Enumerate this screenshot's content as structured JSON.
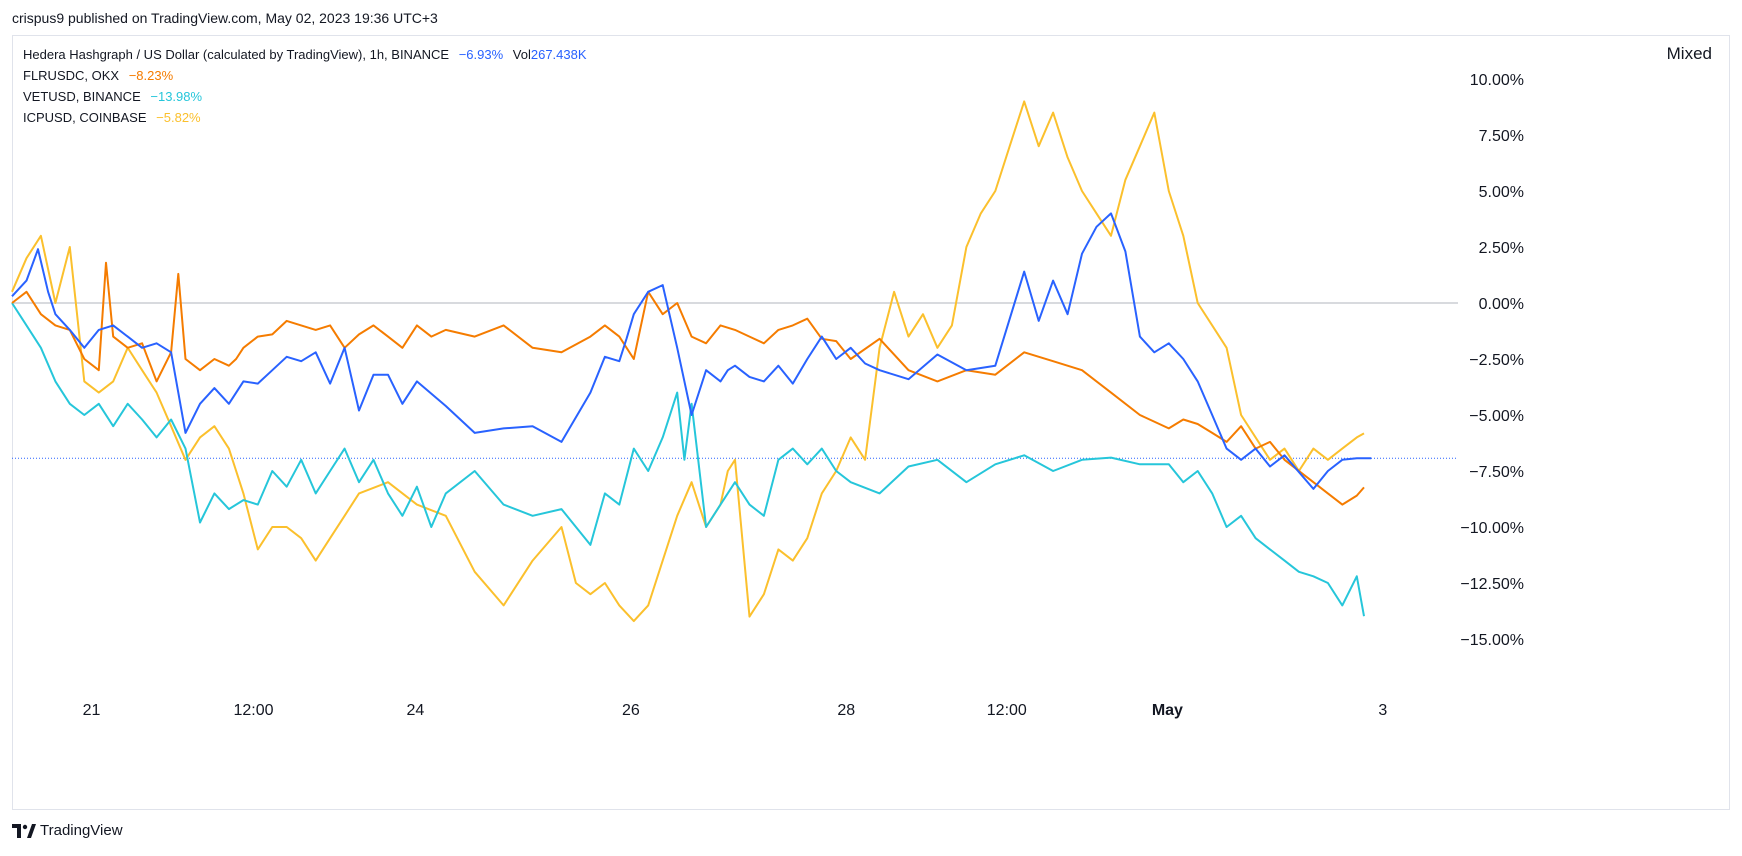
{
  "header": {
    "published_by": "crispus9 published on TradingView.com, May 02, 2023 19:36 UTC+3"
  },
  "footer": {
    "brand": "TradingView"
  },
  "colors": {
    "hbar": "#2962ff",
    "flr": "#f57c00",
    "vet": "#26c6da",
    "icp": "#fbc02d",
    "grid_zero": "#b2b5be",
    "last_price_line": "#2962ff"
  },
  "legend": {
    "main": {
      "name": "Hedera Hashgraph / US Dollar (calculated by TradingView), 1h, BINANCE",
      "change": "−6.93%",
      "vol_label": "Vol",
      "vol_value": "267.438K"
    },
    "series": [
      {
        "name": "FLRUSDC, OKX",
        "change": "−8.23%"
      },
      {
        "name": "VETUSD, BINANCE",
        "change": "−13.98%"
      },
      {
        "name": "ICPUSD, COINBASE",
        "change": "−5.82%"
      }
    ]
  },
  "chart_data": {
    "type": "line",
    "scale_label": "Mixed",
    "y_ticks": [
      "10.00%",
      "7.50%",
      "5.00%",
      "2.50%",
      "0.00%",
      "−2.50%",
      "−5.00%",
      "−7.50%",
      "−10.00%",
      "−12.50%",
      "−15.00%"
    ],
    "y_tick_values": [
      10,
      7.5,
      5,
      2.5,
      0,
      -2.5,
      -5,
      -7.5,
      -10,
      -12.5,
      -15
    ],
    "ylim": [
      -16.5,
      11.5
    ],
    "x_ticks": [
      {
        "label": "21",
        "t": 0.055
      },
      {
        "label": "12:00",
        "t": 0.167
      },
      {
        "label": "24",
        "t": 0.279
      },
      {
        "label": "26",
        "t": 0.428
      },
      {
        "label": "28",
        "t": 0.577
      },
      {
        "label": "12:00",
        "t": 0.688
      },
      {
        "label": "May",
        "t": 0.799,
        "bold": true
      },
      {
        "label": "3",
        "t": 0.948
      }
    ],
    "series": [
      {
        "name": "Hedera Hashgraph / US Dollar",
        "color_key": "hbar",
        "x": [
          0,
          0.01,
          0.018,
          0.025,
          0.03,
          0.04,
          0.05,
          0.06,
          0.07,
          0.08,
          0.09,
          0.1,
          0.11,
          0.12,
          0.13,
          0.14,
          0.15,
          0.16,
          0.17,
          0.18,
          0.19,
          0.2,
          0.21,
          0.22,
          0.23,
          0.24,
          0.25,
          0.26,
          0.27,
          0.28,
          0.3,
          0.32,
          0.34,
          0.36,
          0.38,
          0.4,
          0.41,
          0.42,
          0.425,
          0.43,
          0.44,
          0.45,
          0.46,
          0.47,
          0.48,
          0.49,
          0.495,
          0.5,
          0.51,
          0.52,
          0.53,
          0.54,
          0.55,
          0.56,
          0.57,
          0.58,
          0.59,
          0.6,
          0.62,
          0.64,
          0.66,
          0.68,
          0.7,
          0.71,
          0.72,
          0.73,
          0.74,
          0.75,
          0.76,
          0.77,
          0.78,
          0.79,
          0.8,
          0.81,
          0.82,
          0.83,
          0.84,
          0.85,
          0.86,
          0.87,
          0.88,
          0.9,
          0.91,
          0.92,
          0.93,
          0.94
        ],
        "values": [
          0.3,
          1.0,
          2.4,
          0.5,
          -0.5,
          -1.2,
          -2.0,
          -1.2,
          -1.0,
          -1.5,
          -2.0,
          -1.8,
          -2.2,
          -5.8,
          -4.5,
          -3.8,
          -4.5,
          -3.5,
          -3.6,
          -3.0,
          -2.4,
          -2.6,
          -2.2,
          -3.6,
          -2.0,
          -4.8,
          -3.2,
          -3.2,
          -4.5,
          -3.5,
          -4.6,
          -5.8,
          -5.6,
          -5.5,
          -6.2,
          -4.0,
          -2.4,
          -2.6,
          -1.6,
          -0.5,
          0.5,
          0.8,
          -2.0,
          -5.0,
          -3.0,
          -3.5,
          -3.0,
          -2.8,
          -3.3,
          -3.5,
          -2.8,
          -3.6,
          -2.5,
          -1.5,
          -2.5,
          -2.0,
          -2.7,
          -3.0,
          -3.4,
          -2.3,
          -3.0,
          -2.8,
          1.4,
          -0.8,
          1.0,
          -0.5,
          2.2,
          3.4,
          4.0,
          2.3,
          -1.5,
          -2.2,
          -1.8,
          -2.5,
          -3.5,
          -5.0,
          -6.5,
          -7.0,
          -6.5,
          -7.3,
          -6.8,
          -8.3,
          -7.5,
          -7.0,
          -6.93,
          -6.93
        ]
      },
      {
        "name": "FLRUSDC, OKX",
        "color_key": "flr",
        "x": [
          0,
          0.01,
          0.02,
          0.03,
          0.04,
          0.05,
          0.06,
          0.065,
          0.07,
          0.08,
          0.09,
          0.1,
          0.11,
          0.115,
          0.12,
          0.13,
          0.14,
          0.15,
          0.155,
          0.16,
          0.17,
          0.18,
          0.19,
          0.2,
          0.21,
          0.22,
          0.23,
          0.24,
          0.25,
          0.26,
          0.27,
          0.28,
          0.29,
          0.3,
          0.32,
          0.34,
          0.36,
          0.38,
          0.4,
          0.41,
          0.42,
          0.43,
          0.44,
          0.45,
          0.46,
          0.47,
          0.48,
          0.49,
          0.5,
          0.51,
          0.52,
          0.53,
          0.54,
          0.55,
          0.56,
          0.57,
          0.58,
          0.6,
          0.62,
          0.64,
          0.66,
          0.68,
          0.7,
          0.72,
          0.74,
          0.76,
          0.78,
          0.8,
          0.81,
          0.82,
          0.83,
          0.84,
          0.85,
          0.86,
          0.87,
          0.88,
          0.9,
          0.91,
          0.92,
          0.93,
          0.935
        ],
        "values": [
          0.0,
          0.5,
          -0.5,
          -1.0,
          -1.2,
          -2.5,
          -3.0,
          1.8,
          -1.5,
          -2.0,
          -1.8,
          -3.5,
          -2.2,
          1.3,
          -2.5,
          -3.0,
          -2.5,
          -2.8,
          -2.5,
          -2.0,
          -1.5,
          -1.4,
          -0.8,
          -1.0,
          -1.2,
          -1.0,
          -2.0,
          -1.4,
          -1.0,
          -1.5,
          -2.0,
          -1.0,
          -1.5,
          -1.2,
          -1.5,
          -1.0,
          -2.0,
          -2.2,
          -1.5,
          -1.0,
          -1.5,
          -2.5,
          0.5,
          -0.5,
          0.0,
          -1.5,
          -1.8,
          -1.0,
          -1.2,
          -1.5,
          -1.8,
          -1.2,
          -1.0,
          -0.7,
          -1.6,
          -1.7,
          -2.5,
          -1.6,
          -3.0,
          -3.5,
          -3.0,
          -3.2,
          -2.2,
          -2.6,
          -3.0,
          -4.0,
          -5.0,
          -5.6,
          -5.2,
          -5.4,
          -5.8,
          -6.2,
          -5.5,
          -6.5,
          -6.2,
          -7.0,
          -8.0,
          -8.5,
          -9.0,
          -8.6,
          -8.23
        ]
      },
      {
        "name": "VETUSD, BINANCE",
        "color_key": "vet",
        "x": [
          0,
          0.01,
          0.02,
          0.03,
          0.04,
          0.05,
          0.06,
          0.07,
          0.08,
          0.09,
          0.1,
          0.11,
          0.12,
          0.13,
          0.14,
          0.15,
          0.16,
          0.17,
          0.18,
          0.19,
          0.2,
          0.21,
          0.22,
          0.23,
          0.24,
          0.25,
          0.26,
          0.27,
          0.28,
          0.29,
          0.3,
          0.32,
          0.34,
          0.36,
          0.38,
          0.4,
          0.41,
          0.42,
          0.43,
          0.44,
          0.45,
          0.46,
          0.465,
          0.47,
          0.48,
          0.49,
          0.5,
          0.51,
          0.52,
          0.53,
          0.54,
          0.55,
          0.56,
          0.57,
          0.58,
          0.6,
          0.62,
          0.64,
          0.66,
          0.68,
          0.7,
          0.72,
          0.74,
          0.76,
          0.78,
          0.8,
          0.81,
          0.82,
          0.83,
          0.84,
          0.85,
          0.86,
          0.87,
          0.88,
          0.89,
          0.9,
          0.91,
          0.92,
          0.93,
          0.935
        ],
        "values": [
          0.0,
          -1.0,
          -2.0,
          -3.5,
          -4.5,
          -5.0,
          -4.5,
          -5.5,
          -4.5,
          -5.2,
          -6.0,
          -5.2,
          -6.5,
          -9.8,
          -8.5,
          -9.2,
          -8.8,
          -9.0,
          -7.5,
          -8.2,
          -7.0,
          -8.5,
          -7.5,
          -6.5,
          -8.0,
          -7.0,
          -8.5,
          -9.5,
          -8.2,
          -10.0,
          -8.5,
          -7.5,
          -9.0,
          -9.5,
          -9.2,
          -10.8,
          -8.5,
          -9.0,
          -6.5,
          -7.5,
          -6.0,
          -4.0,
          -7.0,
          -4.5,
          -10.0,
          -9.0,
          -8.0,
          -9.0,
          -9.5,
          -7.0,
          -6.5,
          -7.2,
          -6.5,
          -7.5,
          -8.0,
          -8.5,
          -7.3,
          -7.0,
          -8.0,
          -7.2,
          -6.8,
          -7.5,
          -7.0,
          -6.9,
          -7.2,
          -7.2,
          -8.0,
          -7.5,
          -8.5,
          -10.0,
          -9.5,
          -10.5,
          -11.0,
          -11.5,
          -12.0,
          -12.2,
          -12.5,
          -13.5,
          -12.2,
          -13.98
        ]
      },
      {
        "name": "ICPUSD, COINBASE",
        "color_key": "icp",
        "x": [
          0,
          0.01,
          0.02,
          0.03,
          0.04,
          0.05,
          0.06,
          0.07,
          0.08,
          0.09,
          0.1,
          0.11,
          0.12,
          0.13,
          0.14,
          0.15,
          0.16,
          0.17,
          0.18,
          0.19,
          0.2,
          0.21,
          0.22,
          0.23,
          0.24,
          0.26,
          0.28,
          0.3,
          0.32,
          0.34,
          0.36,
          0.38,
          0.39,
          0.4,
          0.41,
          0.42,
          0.43,
          0.44,
          0.45,
          0.46,
          0.47,
          0.48,
          0.49,
          0.495,
          0.5,
          0.51,
          0.52,
          0.53,
          0.54,
          0.55,
          0.56,
          0.57,
          0.58,
          0.59,
          0.6,
          0.61,
          0.62,
          0.63,
          0.64,
          0.65,
          0.66,
          0.67,
          0.68,
          0.69,
          0.7,
          0.71,
          0.72,
          0.73,
          0.74,
          0.75,
          0.76,
          0.77,
          0.78,
          0.79,
          0.8,
          0.81,
          0.82,
          0.83,
          0.84,
          0.85,
          0.86,
          0.87,
          0.88,
          0.89,
          0.9,
          0.91,
          0.92,
          0.93,
          0.935
        ],
        "values": [
          0.5,
          2.0,
          3.0,
          0.0,
          2.5,
          -3.5,
          -4.0,
          -3.5,
          -2.0,
          -3.0,
          -4.0,
          -5.5,
          -7.0,
          -6.0,
          -5.5,
          -6.5,
          -8.5,
          -11.0,
          -10.0,
          -10.0,
          -10.5,
          -11.5,
          -10.5,
          -9.5,
          -8.5,
          -8.0,
          -9.0,
          -9.5,
          -12.0,
          -13.5,
          -11.5,
          -10.0,
          -12.5,
          -13.0,
          -12.5,
          -13.5,
          -14.2,
          -13.5,
          -11.5,
          -9.5,
          -8.0,
          -10.0,
          -9.0,
          -7.5,
          -7.0,
          -14.0,
          -13.0,
          -11.0,
          -11.5,
          -10.5,
          -8.5,
          -7.5,
          -6.0,
          -7.0,
          -2.0,
          0.5,
          -1.5,
          -0.5,
          -2.0,
          -1.0,
          2.5,
          4.0,
          5.0,
          7.0,
          9.0,
          7.0,
          8.5,
          6.5,
          5.0,
          4.0,
          3.0,
          5.5,
          7.0,
          8.5,
          5.0,
          3.0,
          0.0,
          -1.0,
          -2.0,
          -5.0,
          -6.0,
          -7.0,
          -6.5,
          -7.5,
          -6.5,
          -7.0,
          -6.5,
          -6.0,
          -5.82
        ]
      }
    ]
  }
}
